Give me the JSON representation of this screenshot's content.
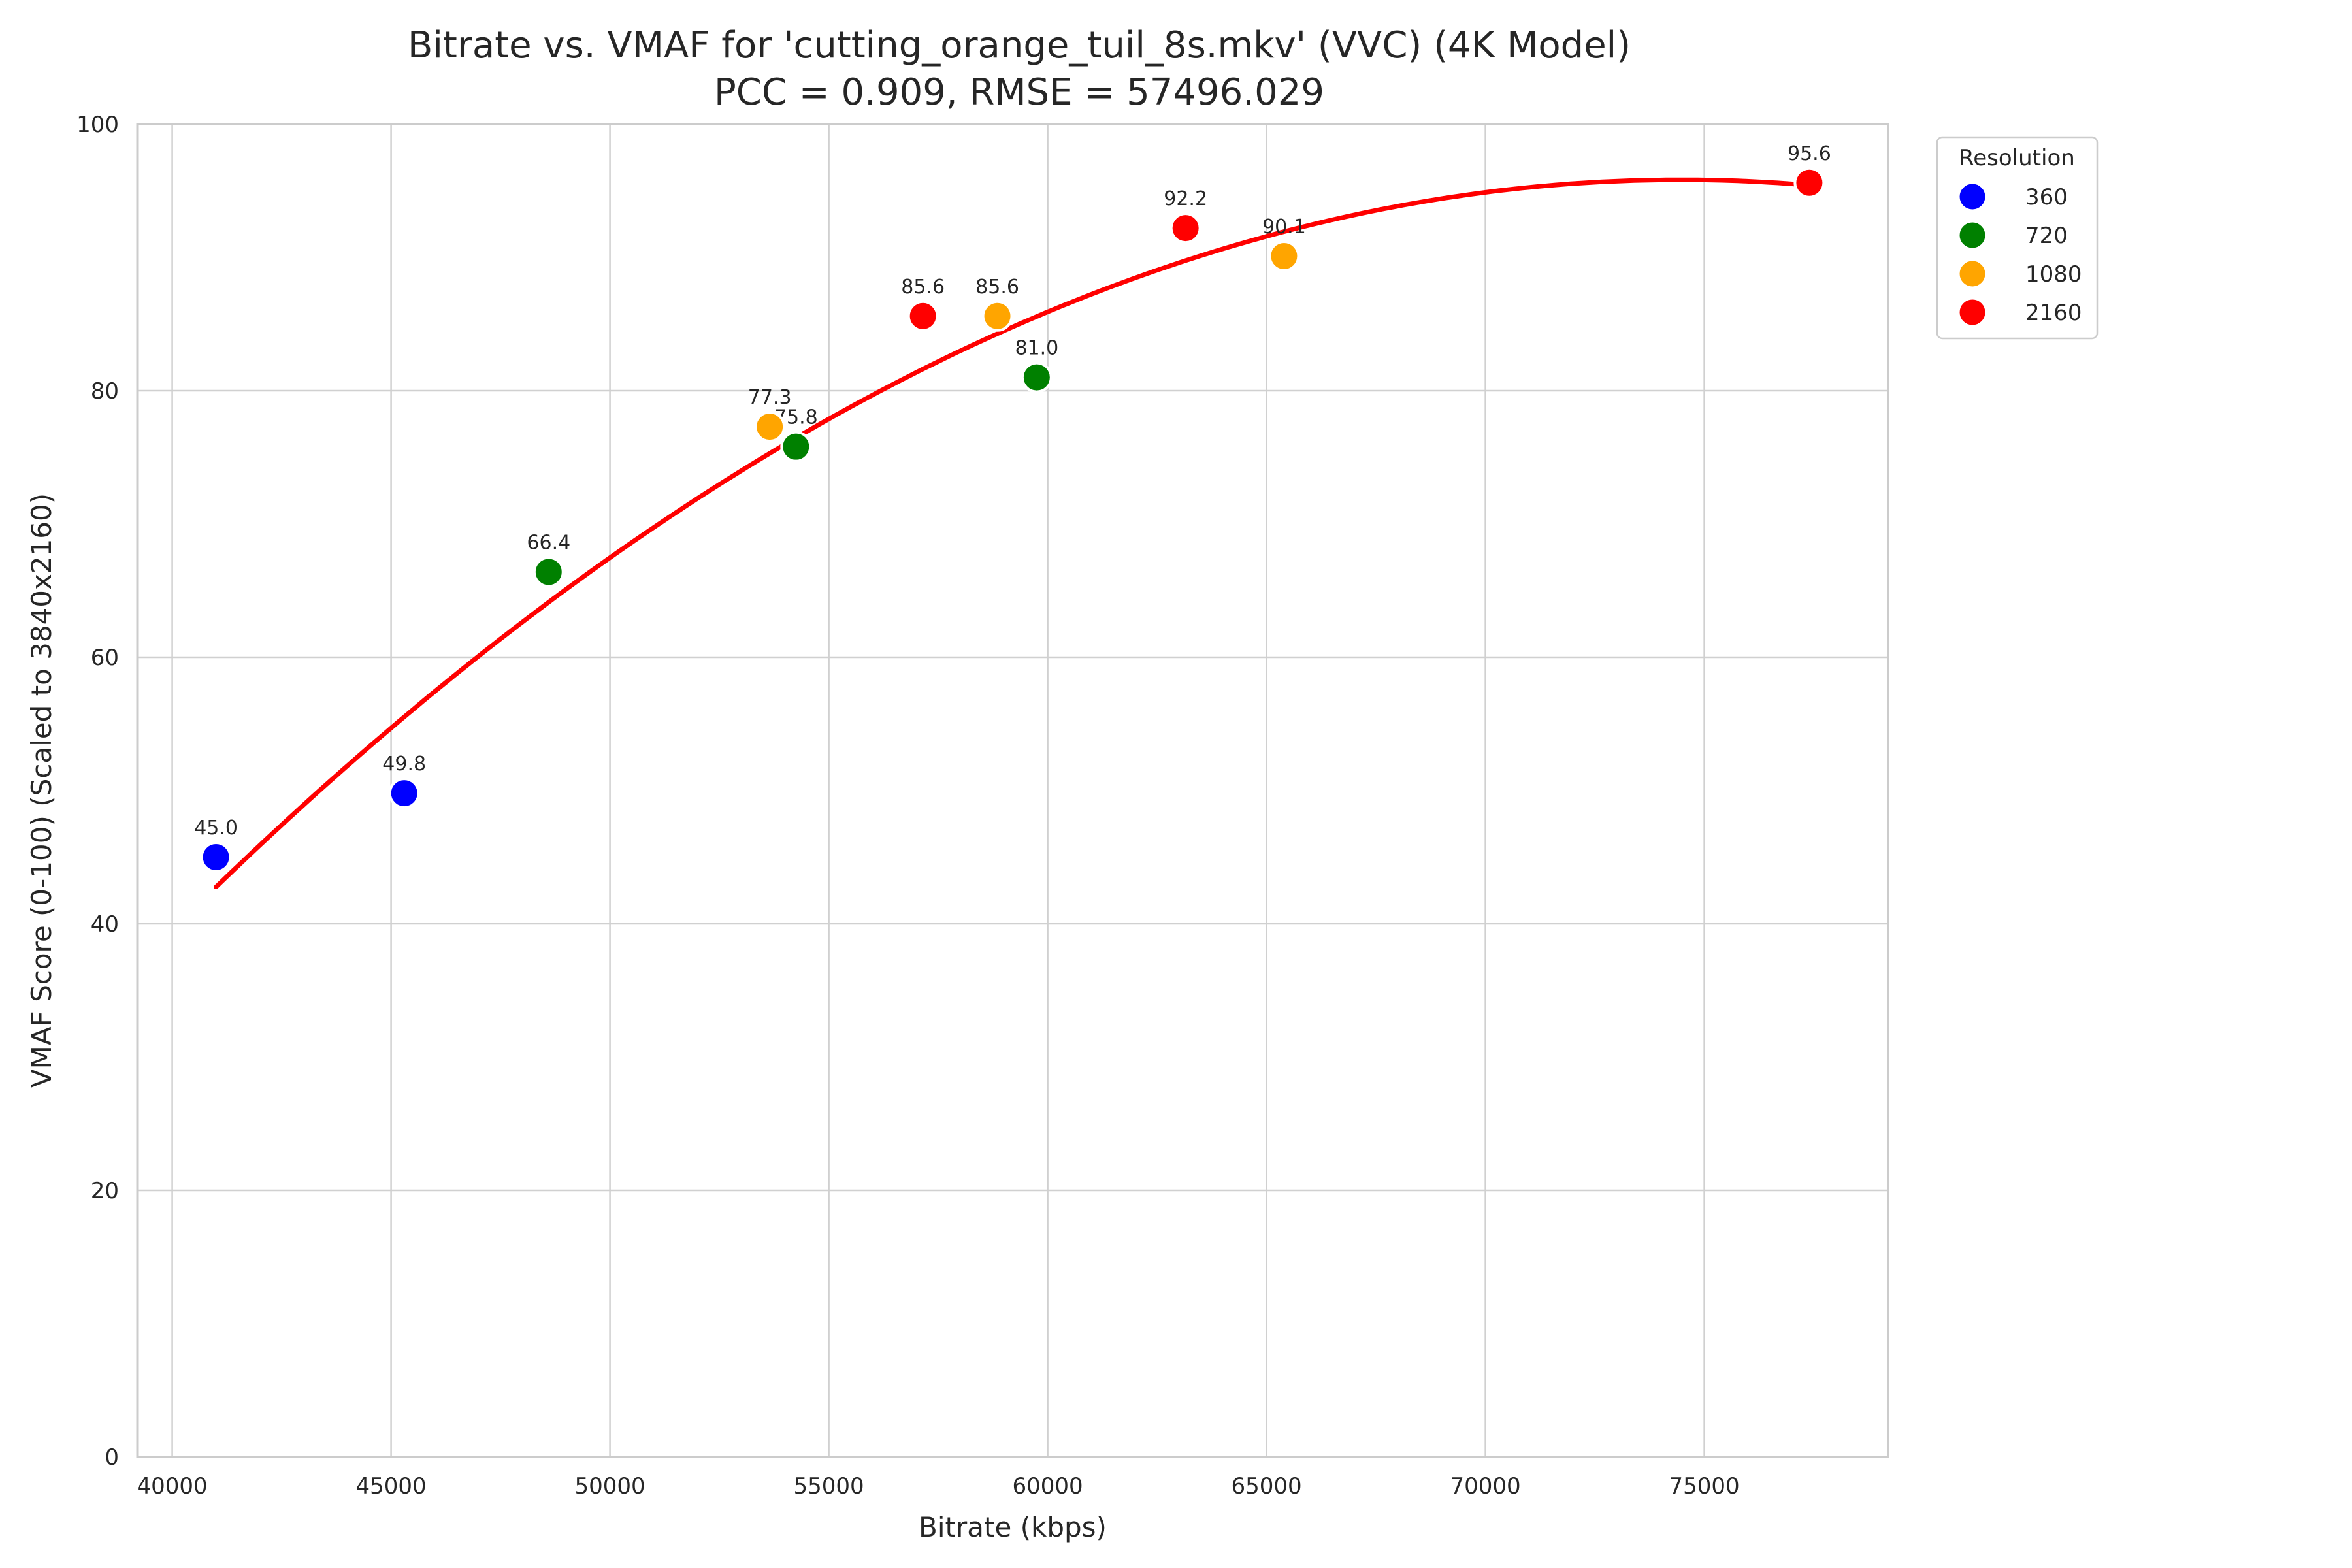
{
  "chart_data": {
    "type": "scatter",
    "title": "Bitrate vs. VMAF for 'cutting_orange_tuil_8s.mkv' (VVC) (4K Model)",
    "subtitle": "PCC = 0.909, RMSE = 57496.029",
    "xlabel": "Bitrate (kbps)",
    "ylabel": "VMAF Score (0-100) (Scaled to 3840x2160)",
    "xlim": [
      39200,
      79200
    ],
    "ylim": [
      0,
      100
    ],
    "x_ticks": [
      40000,
      45000,
      50000,
      55000,
      60000,
      65000,
      70000,
      75000
    ],
    "y_ticks": [
      0,
      20,
      40,
      60,
      80,
      100
    ],
    "grid": true,
    "legend": {
      "title": "Resolution",
      "placement": "outside-top-right",
      "entries": [
        {
          "label": "360",
          "color": "#0000ff"
        },
        {
          "label": "720",
          "color": "#008000"
        },
        {
          "label": "1080",
          "color": "#ffa500"
        },
        {
          "label": "2160",
          "color": "#ff0000"
        }
      ]
    },
    "series": [
      {
        "name": "360",
        "color": "#0000ff",
        "points": [
          {
            "x": 41000,
            "y": 45.0,
            "label": "45.0"
          },
          {
            "x": 45300,
            "y": 49.8,
            "label": "49.8"
          }
        ]
      },
      {
        "name": "720",
        "color": "#008000",
        "points": [
          {
            "x": 48600,
            "y": 66.4,
            "label": "66.4"
          },
          {
            "x": 54250,
            "y": 75.8,
            "label": "75.8"
          },
          {
            "x": 59750,
            "y": 81.0,
            "label": "81.0"
          }
        ]
      },
      {
        "name": "1080",
        "color": "#ffa500",
        "points": [
          {
            "x": 53650,
            "y": 77.3,
            "label": "77.3"
          },
          {
            "x": 58850,
            "y": 85.6,
            "label": "85.6"
          },
          {
            "x": 65400,
            "y": 90.1,
            "label": "90.1"
          }
        ]
      },
      {
        "name": "2160",
        "color": "#ff0000",
        "points": [
          {
            "x": 57150,
            "y": 85.6,
            "label": "85.6"
          },
          {
            "x": 63150,
            "y": 92.2,
            "label": "92.2"
          },
          {
            "x": 77400,
            "y": 95.6,
            "label": "95.6"
          }
        ]
      }
    ],
    "fit_curve": {
      "type": "quadratic",
      "color": "#ff0000",
      "x_range": [
        41000,
        77400
      ],
      "points": [
        {
          "x": 41000,
          "y": 42.7
        },
        {
          "x": 45000,
          "y": 54.8
        },
        {
          "x": 50000,
          "y": 67.5
        },
        {
          "x": 55000,
          "y": 77.8
        },
        {
          "x": 60000,
          "y": 85.8
        },
        {
          "x": 65000,
          "y": 91.7
        },
        {
          "x": 70000,
          "y": 94.9
        },
        {
          "x": 74000,
          "y": 95.8
        },
        {
          "x": 77400,
          "y": 95.4
        }
      ]
    }
  }
}
